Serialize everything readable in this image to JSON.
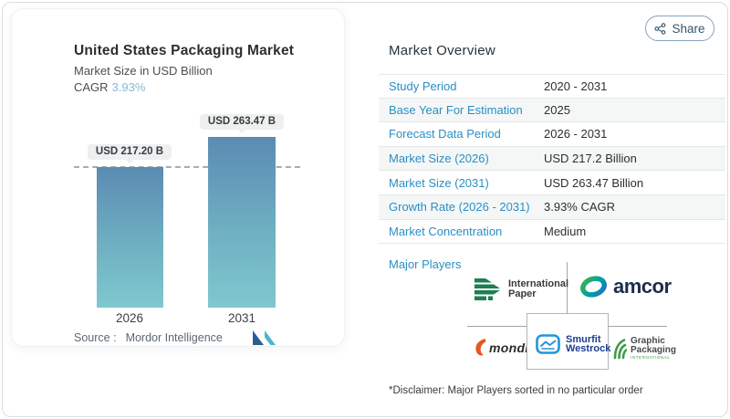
{
  "share": {
    "label": "Share"
  },
  "chart": {
    "title": "United States Packaging Market",
    "subtitle": "Market Size in USD Billion",
    "cagr_label": "CAGR",
    "cagr_value": "3.93%",
    "source_label": "Source :",
    "source_value": "Mordor Intelligence",
    "bars": [
      {
        "year": "2026",
        "label": "USD 217.20 B"
      },
      {
        "year": "2031",
        "label": "USD 263.47 B"
      }
    ]
  },
  "chart_data": {
    "type": "bar",
    "categories": [
      "2026",
      "2031"
    ],
    "values": [
      217.2,
      263.47
    ],
    "data_labels": [
      "USD 217.20 B",
      "USD 263.47 B"
    ],
    "title": "United States Packaging Market",
    "subtitle": "Market Size in USD Billion",
    "ylabel": "Market Size in USD Billion",
    "cagr": "3.93%",
    "reference_line": 217.2,
    "grid": false,
    "source": "Mordor Intelligence",
    "bar_color_top": "#5b8bb2",
    "bar_color_bottom": "#7fc8cf"
  },
  "overview": {
    "title": "Market Overview",
    "rows": [
      {
        "label": "Study Period",
        "value": "2020 - 2031"
      },
      {
        "label": "Base Year For Estimation",
        "value": "2025"
      },
      {
        "label": "Forecast Data Period",
        "value": "2026 - 2031"
      },
      {
        "label": "Market Size (2026)",
        "value": "USD 217.2 Billion"
      },
      {
        "label": "Market Size (2031)",
        "value": "USD 263.47 Billion"
      },
      {
        "label": "Growth Rate (2026 - 2031)",
        "value": "3.93% CAGR"
      },
      {
        "label": "Market Concentration",
        "value": "Medium"
      }
    ],
    "major_players_label": "Major Players",
    "disclaimer": "*Disclaimer: Major Players sorted in no particular order"
  },
  "players": {
    "ip_line1": "International",
    "ip_line2": "Paper",
    "amcor": "amcor",
    "mondi": "mondi",
    "sw_line1": "Smurfit",
    "sw_line2": "Westrock",
    "gp_line1": "Graphic",
    "gp_line2": "Packaging",
    "gp_line3": "INTERNATIONAL"
  },
  "colors": {
    "accent_blue": "#2a8fc3",
    "cagr_blue": "#86b8d9",
    "bar_top": "#5b8bb2",
    "bar_bottom": "#7fc8cf",
    "share_navy": "#33566e"
  }
}
